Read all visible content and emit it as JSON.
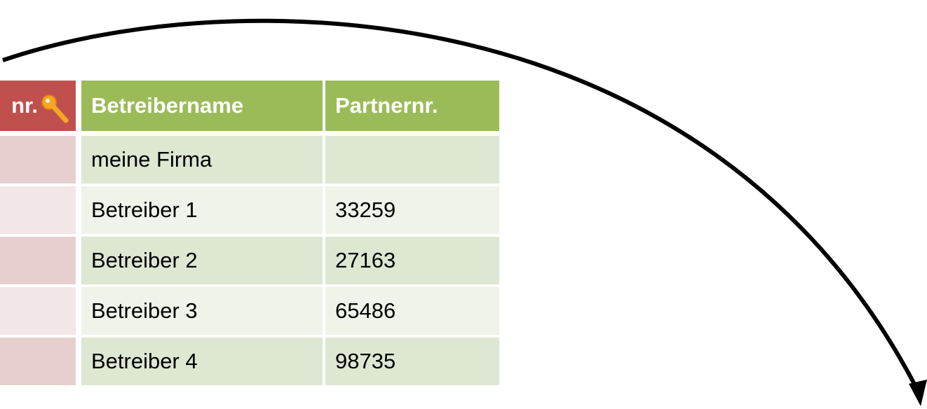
{
  "table": {
    "headers": [
      "nr.",
      "Betreibername",
      "Partnernr."
    ],
    "rows": [
      {
        "name": "meine Firma"
      },
      {
        "name": "Betreiber 1",
        "partner": "33259"
      },
      {
        "name": "Betreiber 2",
        "partner": "27163"
      },
      {
        "name": "Betreiber 3",
        "partner": "65486"
      },
      {
        "name": "Betreiber 4",
        "partner": "98735"
      }
    ]
  }
}
